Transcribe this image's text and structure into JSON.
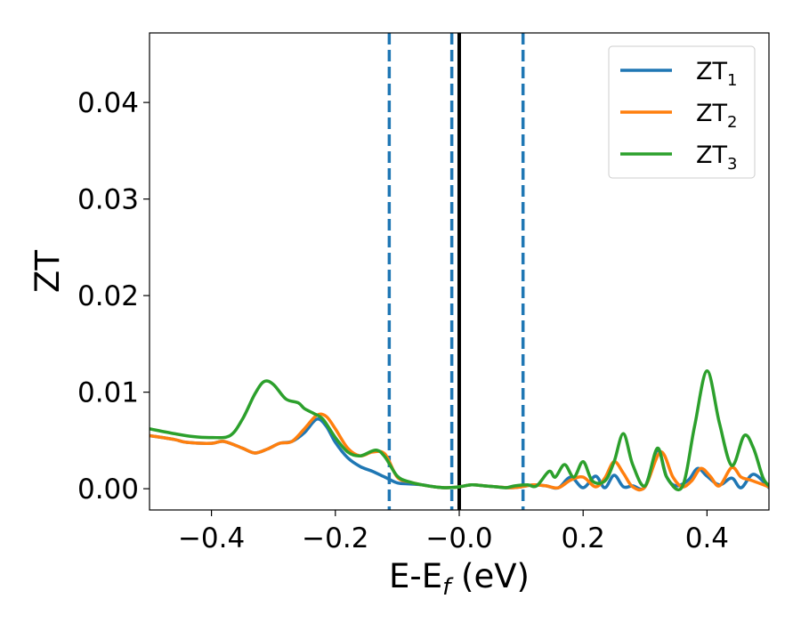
{
  "chart_data": {
    "type": "line",
    "title": "",
    "xlabel": {
      "main": "E-E",
      "sub": "f",
      "unit": " (eV)"
    },
    "ylabel": "ZT",
    "xlim": [
      -0.5,
      0.5
    ],
    "ylim": [
      -0.0022,
      0.0472
    ],
    "xticks": [
      -0.4,
      -0.2,
      0.0,
      0.2,
      0.4
    ],
    "xtick_labels": [
      "−0.4",
      "−0.2",
      "−0.0",
      "0.2",
      "0.4"
    ],
    "yticks": [
      0.0,
      0.01,
      0.02,
      0.03,
      0.04
    ],
    "ytick_labels": [
      "0.00",
      "0.01",
      "0.02",
      "0.03",
      "0.04"
    ],
    "grid": false,
    "legend_position": "top-right",
    "reference_lines": [
      {
        "x": -0.113,
        "style": "dashed",
        "color": "#1f77b4"
      },
      {
        "x": -0.012,
        "style": "dashed",
        "color": "#1f77b4"
      },
      {
        "x": 0.0,
        "style": "solid",
        "color": "#000000"
      },
      {
        "x": 0.103,
        "style": "dashed",
        "color": "#1f77b4"
      }
    ],
    "series": [
      {
        "name": "ZT",
        "sub": "1",
        "color": "#1f77b4",
        "points": [
          [
            -0.5,
            0.0055
          ],
          [
            -0.46,
            0.0051
          ],
          [
            -0.44,
            0.0048
          ],
          [
            -0.4,
            0.0047
          ],
          [
            -0.38,
            0.0049
          ],
          [
            -0.35,
            0.0042
          ],
          [
            -0.33,
            0.0037
          ],
          [
            -0.31,
            0.0041
          ],
          [
            -0.29,
            0.0047
          ],
          [
            -0.27,
            0.0049
          ],
          [
            -0.25,
            0.0058
          ],
          [
            -0.23,
            0.0072
          ],
          [
            -0.215,
            0.0065
          ],
          [
            -0.2,
            0.0048
          ],
          [
            -0.18,
            0.0032
          ],
          [
            -0.16,
            0.0023
          ],
          [
            -0.14,
            0.0018
          ],
          [
            -0.12,
            0.0012
          ],
          [
            -0.1,
            0.0006
          ],
          [
            -0.08,
            0.0005
          ],
          [
            -0.06,
            0.0004
          ],
          [
            -0.04,
            0.0002
          ],
          [
            -0.02,
            0.0001
          ],
          [
            0.0,
            0.0002
          ],
          [
            0.02,
            0.0004
          ],
          [
            0.04,
            0.0003
          ],
          [
            0.06,
            0.0002
          ],
          [
            0.08,
            0.0001
          ],
          [
            0.1,
            0.0002
          ],
          [
            0.12,
            0.0004
          ],
          [
            0.14,
            0.0003
          ],
          [
            0.16,
            0.0001
          ],
          [
            0.18,
            0.0012
          ],
          [
            0.2,
            0.0001
          ],
          [
            0.22,
            0.0013
          ],
          [
            0.235,
            0.0001
          ],
          [
            0.25,
            0.0014
          ],
          [
            0.265,
            0.0002
          ],
          [
            0.28,
            0.0003
          ],
          [
            0.3,
            0.0002
          ],
          [
            0.32,
            0.004
          ],
          [
            0.335,
            0.0012
          ],
          [
            0.35,
            0.0003
          ],
          [
            0.37,
            0.0009
          ],
          [
            0.385,
            0.0021
          ],
          [
            0.4,
            0.0013
          ],
          [
            0.42,
            0.0004
          ],
          [
            0.44,
            0.0011
          ],
          [
            0.455,
            0.0001
          ],
          [
            0.475,
            0.0015
          ],
          [
            0.5,
            0.0001
          ]
        ]
      },
      {
        "name": "ZT",
        "sub": "2",
        "color": "#ff7f0e",
        "points": [
          [
            -0.5,
            0.0055
          ],
          [
            -0.46,
            0.0051
          ],
          [
            -0.44,
            0.0048
          ],
          [
            -0.4,
            0.0047
          ],
          [
            -0.38,
            0.0049
          ],
          [
            -0.35,
            0.0042
          ],
          [
            -0.33,
            0.0037
          ],
          [
            -0.31,
            0.0041
          ],
          [
            -0.29,
            0.0047
          ],
          [
            -0.27,
            0.0049
          ],
          [
            -0.25,
            0.0062
          ],
          [
            -0.23,
            0.0076
          ],
          [
            -0.215,
            0.0075
          ],
          [
            -0.2,
            0.0062
          ],
          [
            -0.18,
            0.0042
          ],
          [
            -0.16,
            0.0034
          ],
          [
            -0.14,
            0.0038
          ],
          [
            -0.12,
            0.0036
          ],
          [
            -0.1,
            0.0012
          ],
          [
            -0.08,
            0.0007
          ],
          [
            -0.06,
            0.0004
          ],
          [
            -0.04,
            0.0002
          ],
          [
            -0.02,
            0.0001
          ],
          [
            0.0,
            0.0002
          ],
          [
            0.02,
            0.0004
          ],
          [
            0.04,
            0.0003
          ],
          [
            0.06,
            0.0002
          ],
          [
            0.08,
            0.0001
          ],
          [
            0.1,
            0.0002
          ],
          [
            0.12,
            0.0004
          ],
          [
            0.14,
            0.0003
          ],
          [
            0.16,
            0.0001
          ],
          [
            0.18,
            0.0009
          ],
          [
            0.2,
            0.0012
          ],
          [
            0.22,
            0.0002
          ],
          [
            0.235,
            0.0011
          ],
          [
            0.25,
            0.0028
          ],
          [
            0.265,
            0.0016
          ],
          [
            0.28,
            0.0002
          ],
          [
            0.3,
            0.0002
          ],
          [
            0.325,
            0.0038
          ],
          [
            0.345,
            0.0012
          ],
          [
            0.36,
            0.0002
          ],
          [
            0.375,
            0.0008
          ],
          [
            0.39,
            0.0021
          ],
          [
            0.405,
            0.0013
          ],
          [
            0.42,
            0.0003
          ],
          [
            0.44,
            0.0022
          ],
          [
            0.455,
            0.0012
          ],
          [
            0.47,
            0.0009
          ],
          [
            0.5,
            0.0002
          ]
        ]
      },
      {
        "name": "ZT",
        "sub": "3",
        "color": "#2ca02c",
        "points": [
          [
            -0.5,
            0.0062
          ],
          [
            -0.46,
            0.0057
          ],
          [
            -0.43,
            0.0054
          ],
          [
            -0.4,
            0.0053
          ],
          [
            -0.37,
            0.0055
          ],
          [
            -0.35,
            0.0072
          ],
          [
            -0.33,
            0.0098
          ],
          [
            -0.315,
            0.0111
          ],
          [
            -0.3,
            0.0108
          ],
          [
            -0.28,
            0.0093
          ],
          [
            -0.26,
            0.0089
          ],
          [
            -0.25,
            0.0083
          ],
          [
            -0.235,
            0.0078
          ],
          [
            -0.22,
            0.0072
          ],
          [
            -0.2,
            0.0053
          ],
          [
            -0.18,
            0.0038
          ],
          [
            -0.16,
            0.0034
          ],
          [
            -0.135,
            0.004
          ],
          [
            -0.12,
            0.0033
          ],
          [
            -0.1,
            0.0013
          ],
          [
            -0.08,
            0.0007
          ],
          [
            -0.06,
            0.0004
          ],
          [
            -0.04,
            0.0002
          ],
          [
            -0.02,
            0.0001
          ],
          [
            0.0,
            0.0002
          ],
          [
            0.02,
            0.0004
          ],
          [
            0.04,
            0.0003
          ],
          [
            0.06,
            0.0002
          ],
          [
            0.075,
            0.0001
          ],
          [
            0.09,
            0.0003
          ],
          [
            0.11,
            0.0004
          ],
          [
            0.125,
            0.0003
          ],
          [
            0.145,
            0.0018
          ],
          [
            0.155,
            0.0012
          ],
          [
            0.17,
            0.0025
          ],
          [
            0.185,
            0.0012
          ],
          [
            0.2,
            0.0028
          ],
          [
            0.215,
            0.0008
          ],
          [
            0.235,
            0.0008
          ],
          [
            0.25,
            0.0028
          ],
          [
            0.265,
            0.0057
          ],
          [
            0.28,
            0.0025
          ],
          [
            0.3,
            0.0003
          ],
          [
            0.32,
            0.0042
          ],
          [
            0.335,
            0.0012
          ],
          [
            0.36,
            0.0002
          ],
          [
            0.38,
            0.0065
          ],
          [
            0.4,
            0.0122
          ],
          [
            0.42,
            0.0068
          ],
          [
            0.44,
            0.0024
          ],
          [
            0.46,
            0.0055
          ],
          [
            0.475,
            0.0042
          ],
          [
            0.49,
            0.0012
          ],
          [
            0.5,
            0.0003
          ]
        ]
      }
    ]
  }
}
